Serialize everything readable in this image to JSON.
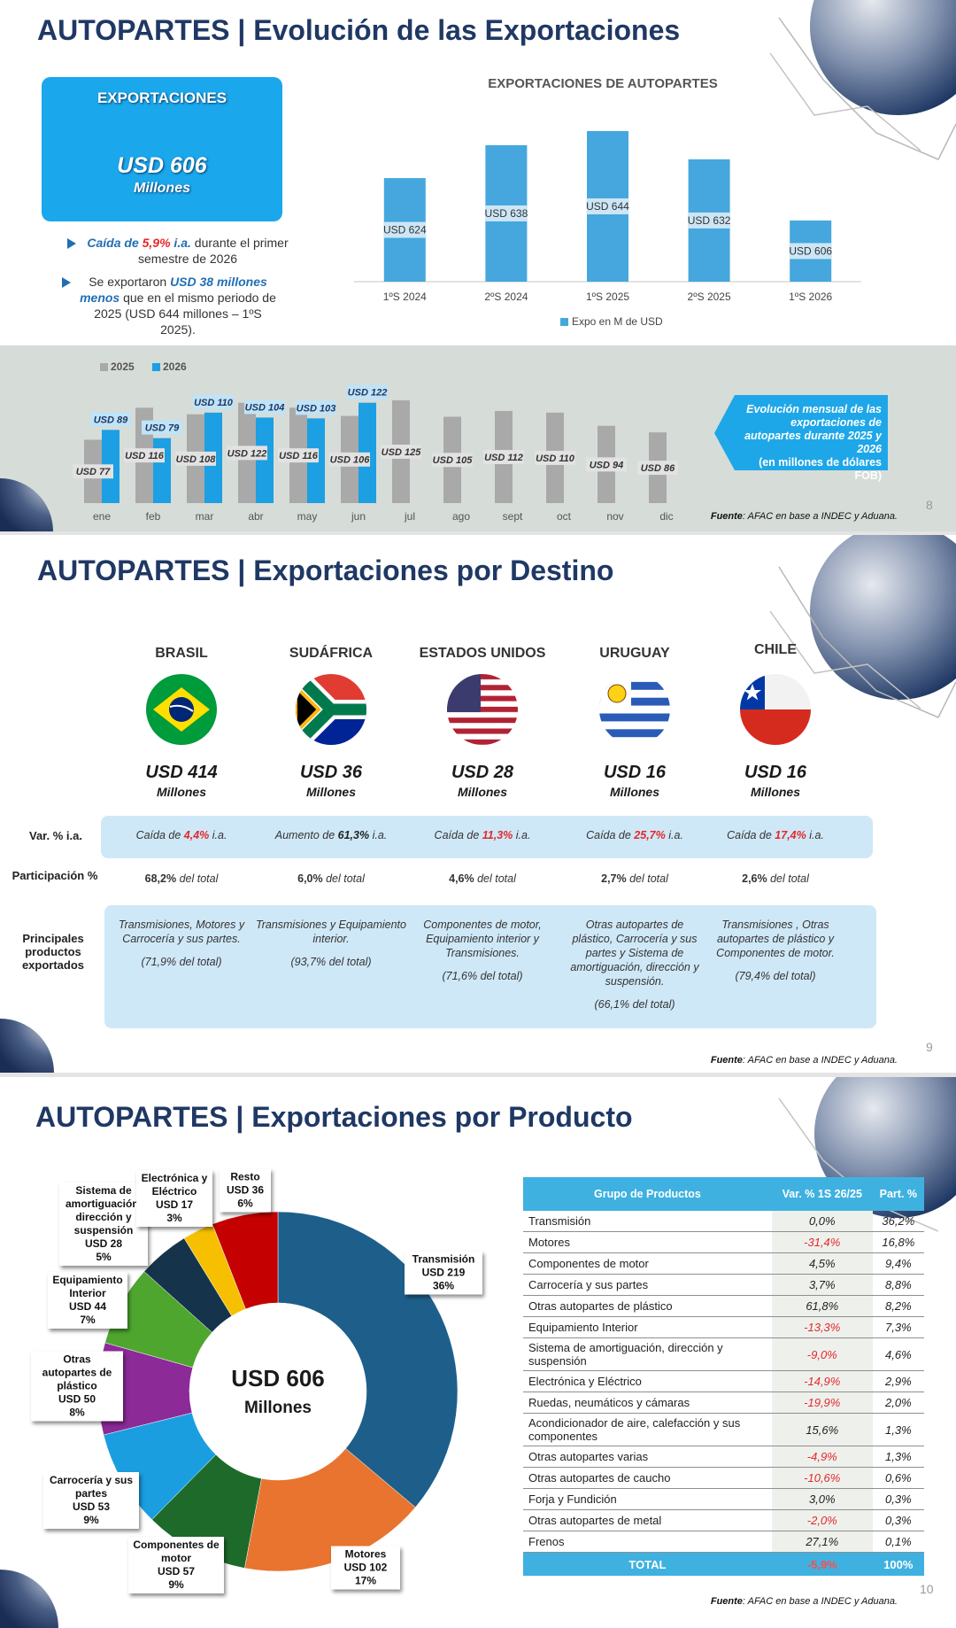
{
  "slides": [
    {
      "title": "AUTOPARTES | Evolución de las Exportaciones",
      "box": {
        "label": "EXPORTACIONES",
        "value": "USD 606",
        "unit": "Millones"
      },
      "bullets": [
        [
          "Caída de ",
          "5,9%",
          " i.a.",
          " durante el primer semestre de 2026"
        ],
        [
          "Se exportaron ",
          "USD 38 millones menos",
          " que en el mismo periodo de 2025 (USD 644 millones – 1ºS 2025)."
        ]
      ],
      "note": [
        "Evolución mensual de las exportaciones de autopartes durante 2025 y 2026",
        "(en millones de dólares FOB)"
      ],
      "source": [
        "Fuente",
        ": AFAC en base a INDEC y Aduana."
      ],
      "page": "8"
    },
    {
      "title": "AUTOPARTES | Exportaciones por Destino",
      "row_labels": [
        "Var. % i.a.",
        "Participación %",
        "Principales productos exportados"
      ],
      "destinations": [
        {
          "name": "BRASIL",
          "amount": "USD 414",
          "unit": "Millones",
          "variation": [
            "Caída de ",
            "4,4%",
            " i.a."
          ],
          "highlight_color": "#e3282c",
          "share": [
            "68,2%",
            " del total"
          ],
          "products": "Transmisiones, Motores y Carrocería y sus partes.",
          "products_share": "(71,9% del total)"
        },
        {
          "name": "SUDÁFRICA",
          "amount": "USD 36",
          "unit": "Millones",
          "variation": [
            "Aumento de ",
            "61,3%",
            " i.a."
          ],
          "highlight_color": "#222222",
          "share": [
            "6,0%",
            " del total"
          ],
          "products": "Transmisiones y Equipamiento interior.",
          "products_share": "(93,7% del total)"
        },
        {
          "name": "ESTADOS UNIDOS",
          "amount": "USD 28",
          "unit": "Millones",
          "variation": [
            "Caída de ",
            "11,3%",
            " i.a."
          ],
          "highlight_color": "#e3282c",
          "share": [
            "4,6%",
            " del total"
          ],
          "products": "Componentes de motor, Equipamiento interior y Transmisiones.",
          "products_share": "(71,6% del total)"
        },
        {
          "name": "URUGUAY",
          "amount": "USD 16",
          "unit": "Millones",
          "variation": [
            "Caída de ",
            "25,7%",
            " i.a."
          ],
          "highlight_color": "#e3282c",
          "share": [
            "2,7%",
            " del total"
          ],
          "products": "Otras autopartes de plástico, Carrocería y sus partes y Sistema de amortiguación, dirección y suspensión.",
          "products_share": "(66,1% del total)"
        },
        {
          "name": "CHILE",
          "amount": "USD 16",
          "unit": "Millones",
          "variation": [
            "Caída de ",
            "17,4%",
            " i.a."
          ],
          "highlight_color": "#e3282c",
          "share": [
            "2,6%",
            " del total"
          ],
          "products": "Transmisiones , Otras autopartes de plástico y Componentes de motor.",
          "products_share": "(79,4% del total)"
        }
      ],
      "source": [
        "Fuente",
        ": AFAC en base a INDEC y Aduana."
      ],
      "page": "9"
    },
    {
      "title": "AUTOPARTES | Exportaciones por Producto",
      "table": {
        "header": [
          "Grupo de Productos",
          "Var. % 1S 26/25",
          "Part. %"
        ],
        "rows": [
          [
            "Transmisión",
            "0,0%",
            "36,2%"
          ],
          [
            "Motores",
            "-31,4%",
            "16,8%"
          ],
          [
            "Componentes de motor",
            "4,5%",
            "9,4%"
          ],
          [
            "Carrocería y sus partes",
            "3,7%",
            "8,8%"
          ],
          [
            "Otras autopartes de plástico",
            "61,8%",
            "8,2%"
          ],
          [
            "Equipamiento Interior",
            "-13,3%",
            "7,3%"
          ],
          [
            "Sistema de amortiguación, dirección y suspensión",
            "-9,0%",
            "4,6%"
          ],
          [
            "Electrónica y Eléctrico",
            "-14,9%",
            "2,9%"
          ],
          [
            "Ruedas, neumáticos y cámaras",
            "-19,9%",
            "2,0%"
          ],
          [
            "Acondicionador de aire, calefacción y sus componentes",
            "15,6%",
            "1,3%"
          ],
          [
            "Otras autopartes varias",
            "-4,9%",
            "1,3%"
          ],
          [
            "Otras autopartes de caucho",
            "-10,6%",
            "0,6%"
          ],
          [
            "Forja y Fundición",
            "3,0%",
            "0,3%"
          ],
          [
            "Otras autopartes de metal",
            "-2,0%",
            "0,3%"
          ],
          [
            "Frenos",
            "27,1%",
            "0,1%"
          ]
        ],
        "total": [
          "TOTAL",
          "-5,9%",
          "100%"
        ]
      },
      "source": [
        "Fuente",
        ": AFAC en base a INDEC y Aduana."
      ],
      "page": "10"
    }
  ],
  "chart_data": [
    {
      "type": "bar",
      "title": "EXPORTACIONES DE AUTOPARTES",
      "categories": [
        "1ºS 2024",
        "2ºS 2024",
        "1ºS 2025",
        "2ºS 2025",
        "1ºS 2026"
      ],
      "series": [
        {
          "name": "Expo en M de USD",
          "color": "#45a7dd",
          "values": [
            624,
            638,
            644,
            632,
            606
          ],
          "value_labels": [
            "USD 624",
            "USD 638",
            "USD 644",
            "USD 632",
            "USD 606"
          ]
        }
      ],
      "ylim": [
        580,
        650
      ],
      "legend": "bottom"
    },
    {
      "type": "grouped-bar",
      "categories": [
        "ene",
        "feb",
        "mar",
        "abr",
        "may",
        "jun",
        "jul",
        "ago",
        "sept",
        "oct",
        "nov",
        "dic"
      ],
      "series": [
        {
          "name": "2025",
          "color": "#a9a9a9",
          "values": [
            77,
            116,
            108,
            122,
            116,
            106,
            125,
            105,
            112,
            110,
            94,
            86
          ],
          "value_labels": [
            "USD 77",
            "USD 116",
            "USD 108",
            "USD 122",
            "USD 116",
            "USD 106",
            "USD 125",
            "USD 105",
            "USD 112",
            "USD 110",
            "USD 94",
            "USD 86"
          ]
        },
        {
          "name": "2026",
          "color": "#1c9fe3",
          "values": [
            89,
            79,
            110,
            104,
            103,
            122,
            null,
            null,
            null,
            null,
            null,
            null
          ],
          "value_labels": [
            "USD 89",
            "USD 79",
            "USD 110",
            "USD 104",
            "USD 103",
            "USD 122",
            null,
            null,
            null,
            null,
            null,
            null
          ]
        }
      ],
      "ylim": [
        0,
        140
      ],
      "legend": "top-left"
    },
    {
      "type": "donut",
      "categories": [
        "Transmisión",
        "Motores",
        "Componentes de motor",
        "Carrocería y sus partes",
        "Otras autopartes de plástico",
        "Equipamiento Interior",
        "Sistema de amortiguación, dirección y suspensión",
        "Electrónica y Eléctrico",
        "Resto"
      ],
      "values": [
        219,
        102,
        57,
        53,
        50,
        44,
        28,
        17,
        36
      ],
      "value_labels": [
        "USD 219",
        "USD 102",
        "USD 57",
        "USD 53",
        "USD 50",
        "USD 44",
        "USD 28",
        "USD 17",
        "USD 36"
      ],
      "percents": [
        36,
        17,
        9,
        9,
        8,
        7,
        5,
        3,
        6
      ],
      "percent_labels": [
        "36%",
        "17%",
        "9%",
        "9%",
        "8%",
        "7%",
        "5%",
        "3%",
        "6%"
      ],
      "colors": [
        "#1d5f8a",
        "#e8742f",
        "#1e6a2b",
        "#1a9ee0",
        "#8c2a98",
        "#4ea62f",
        "#15344b",
        "#f6c000",
        "#c40000"
      ],
      "center_label": [
        "USD 606",
        "Millones"
      ]
    }
  ]
}
